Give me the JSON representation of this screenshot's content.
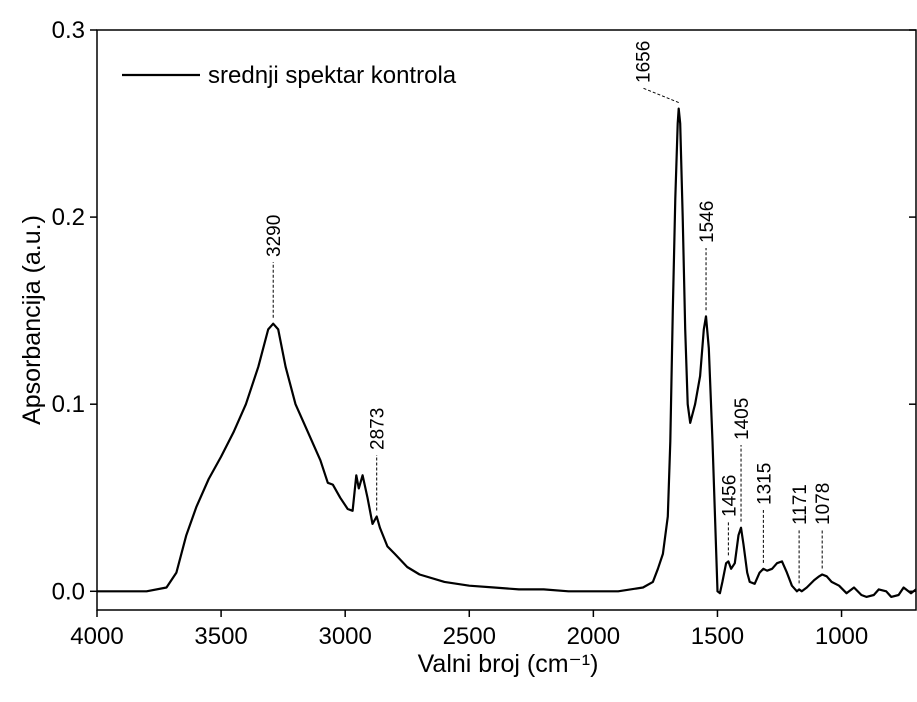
{
  "chart_data": {
    "type": "line",
    "x_label": "Valni broj (cm⁻¹)",
    "y_label": "Apsorbancija (a.u.)",
    "xlim": [
      4000,
      700
    ],
    "ylim": [
      -0.01,
      0.3
    ],
    "xticks": [
      4000,
      3500,
      3000,
      2500,
      2000,
      1500,
      1000
    ],
    "yticks": [
      {
        "value": 0,
        "label": "0.0"
      },
      0.1,
      0.2,
      0.3
    ],
    "legend_position": "upper left",
    "series": [
      {
        "name": "srednji spektar kontrola",
        "color": "#000000",
        "x": [
          4000,
          3800,
          3720,
          3680,
          3640,
          3600,
          3550,
          3500,
          3450,
          3400,
          3350,
          3310,
          3290,
          3270,
          3240,
          3200,
          3150,
          3100,
          3070,
          3050,
          3020,
          2990,
          2970,
          2955,
          2945,
          2930,
          2910,
          2890,
          2873,
          2860,
          2830,
          2800,
          2750,
          2700,
          2600,
          2500,
          2400,
          2300,
          2200,
          2100,
          2000,
          1900,
          1800,
          1760,
          1740,
          1720,
          1700,
          1690,
          1680,
          1670,
          1660,
          1656,
          1650,
          1640,
          1630,
          1620,
          1610,
          1590,
          1570,
          1555,
          1546,
          1535,
          1520,
          1510,
          1500,
          1490,
          1480,
          1465,
          1456,
          1445,
          1430,
          1415,
          1405,
          1395,
          1380,
          1370,
          1350,
          1330,
          1315,
          1300,
          1280,
          1260,
          1240,
          1220,
          1200,
          1180,
          1171,
          1160,
          1140,
          1110,
          1090,
          1078,
          1060,
          1040,
          1010,
          980,
          950,
          920,
          900,
          870,
          850,
          820,
          800,
          770,
          750,
          720,
          700
        ],
        "values": [
          0.0,
          0.0,
          0.002,
          0.01,
          0.03,
          0.045,
          0.06,
          0.072,
          0.085,
          0.1,
          0.12,
          0.14,
          0.143,
          0.14,
          0.12,
          0.1,
          0.085,
          0.07,
          0.058,
          0.057,
          0.05,
          0.044,
          0.043,
          0.062,
          0.055,
          0.062,
          0.05,
          0.036,
          0.04,
          0.034,
          0.024,
          0.02,
          0.013,
          0.009,
          0.005,
          0.003,
          0.002,
          0.001,
          0.001,
          0.0,
          0.0,
          0.0,
          0.002,
          0.005,
          0.012,
          0.02,
          0.04,
          0.08,
          0.15,
          0.21,
          0.25,
          0.258,
          0.25,
          0.2,
          0.14,
          0.1,
          0.09,
          0.1,
          0.115,
          0.14,
          0.147,
          0.13,
          0.08,
          0.04,
          0.0,
          -0.001,
          0.005,
          0.015,
          0.016,
          0.012,
          0.015,
          0.03,
          0.034,
          0.025,
          0.01,
          0.005,
          0.004,
          0.01,
          0.012,
          0.011,
          0.012,
          0.015,
          0.016,
          0.01,
          0.003,
          0.0,
          0.001,
          0.0,
          0.002,
          0.006,
          0.008,
          0.009,
          0.008,
          0.005,
          0.003,
          -0.001,
          0.002,
          -0.002,
          -0.003,
          -0.002,
          0.001,
          0.0,
          -0.003,
          -0.002,
          0.002,
          -0.001,
          0.001
        ]
      }
    ],
    "peaks": [
      3290,
      2873,
      1656,
      1546,
      1456,
      1405,
      1315,
      1171,
      1078
    ]
  }
}
